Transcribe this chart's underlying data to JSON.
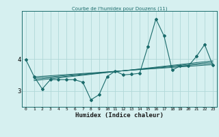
{
  "title": "Courbe de l'humidex pour Douzens (11)",
  "xlabel": "Humidex (Indice chaleur)",
  "ylabel": "",
  "bg_color": "#d6f0f0",
  "line_color": "#1a6b6b",
  "grid_color": "#b0d8d8",
  "x_data": [
    0,
    1,
    2,
    3,
    4,
    5,
    6,
    7,
    8,
    9,
    10,
    11,
    12,
    13,
    14,
    15,
    16,
    17,
    18,
    19,
    20,
    21,
    22,
    23
  ],
  "y_main": [
    3.97,
    3.45,
    3.06,
    3.35,
    3.35,
    3.35,
    3.35,
    3.27,
    2.72,
    2.88,
    3.45,
    3.62,
    3.5,
    3.52,
    3.55,
    4.38,
    5.25,
    4.72,
    3.65,
    3.78,
    3.78,
    4.08,
    4.45,
    3.8
  ],
  "ylim": [
    2.5,
    5.5
  ],
  "yticks": [
    3,
    4
  ],
  "xticks": [
    0,
    1,
    2,
    3,
    4,
    5,
    6,
    7,
    8,
    9,
    10,
    11,
    12,
    13,
    14,
    15,
    16,
    17,
    18,
    19,
    20,
    21,
    22,
    23
  ],
  "regression_lines": [
    {
      "start_x": 1,
      "start_y": 3.44,
      "end_x": 23,
      "end_y": 3.82
    },
    {
      "start_x": 1,
      "start_y": 3.4,
      "end_x": 23,
      "end_y": 3.86
    },
    {
      "start_x": 1,
      "start_y": 3.36,
      "end_x": 23,
      "end_y": 3.9
    },
    {
      "start_x": 1,
      "start_y": 3.32,
      "end_x": 23,
      "end_y": 3.94
    }
  ]
}
